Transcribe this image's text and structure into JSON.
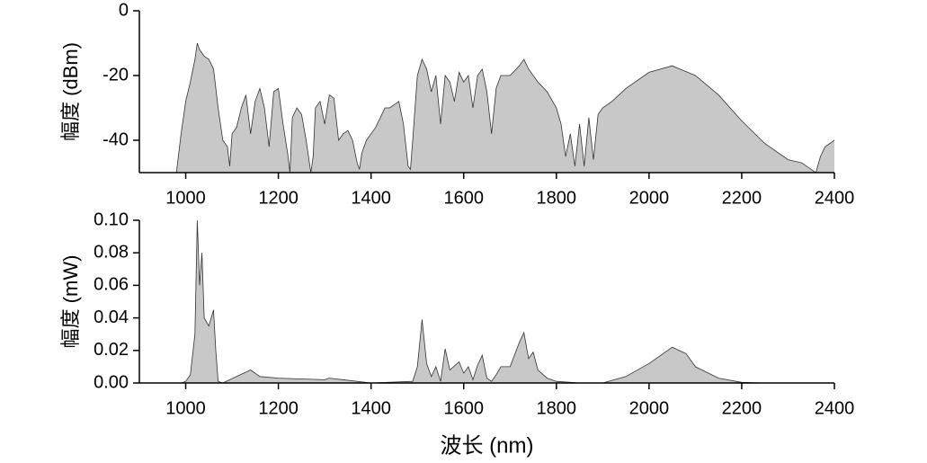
{
  "chart_data": [
    {
      "type": "area",
      "y_label": "幅度 (dBm)",
      "color": "#c8c8c8",
      "line_color": "#333333",
      "xlim": [
        900,
        2400
      ],
      "xticks": [
        1000,
        1200,
        1400,
        1600,
        1800,
        2000,
        2200,
        2400
      ],
      "ylim": [
        -50,
        0
      ],
      "yticks": [
        0,
        -20,
        -40
      ],
      "x": [
        980,
        990,
        1000,
        1010,
        1020,
        1025,
        1030,
        1040,
        1050,
        1060,
        1070,
        1080,
        1090,
        1095,
        1100,
        1110,
        1120,
        1130,
        1140,
        1150,
        1160,
        1170,
        1180,
        1190,
        1200,
        1210,
        1220,
        1225,
        1230,
        1240,
        1250,
        1260,
        1270,
        1275,
        1280,
        1290,
        1300,
        1310,
        1320,
        1330,
        1340,
        1350,
        1360,
        1370,
        1375,
        1380,
        1390,
        1400,
        1410,
        1420,
        1430,
        1440,
        1450,
        1460,
        1470,
        1480,
        1485,
        1490,
        1500,
        1510,
        1520,
        1530,
        1540,
        1550,
        1560,
        1570,
        1580,
        1590,
        1600,
        1610,
        1620,
        1630,
        1640,
        1650,
        1660,
        1670,
        1680,
        1700,
        1720,
        1730,
        1740,
        1760,
        1780,
        1800,
        1810,
        1820,
        1830,
        1840,
        1850,
        1860,
        1870,
        1880,
        1890,
        1900,
        1920,
        1950,
        2000,
        2050,
        2100,
        2150,
        2200,
        2250,
        2300,
        2330,
        2350,
        2360,
        2370,
        2380,
        2400
      ],
      "values": [
        -50,
        -38,
        -28,
        -22,
        -15,
        -10,
        -12,
        -14,
        -15,
        -18,
        -30,
        -40,
        -42,
        -48,
        -38,
        -36,
        -30,
        -26,
        -38,
        -28,
        -24,
        -30,
        -42,
        -25,
        -24,
        -35,
        -44,
        -50,
        -33,
        -30,
        -32,
        -40,
        -50,
        -45,
        -30,
        -28,
        -35,
        -26,
        -27,
        -40,
        -38,
        -37,
        -40,
        -47,
        -49,
        -44,
        -40,
        -38,
        -36,
        -33,
        -30,
        -30,
        -29,
        -28,
        -35,
        -48,
        -49,
        -40,
        -20,
        -15,
        -18,
        -25,
        -20,
        -35,
        -20,
        -22,
        -28,
        -19,
        -22,
        -20,
        -30,
        -20,
        -18,
        -25,
        -38,
        -24,
        -20,
        -20,
        -17,
        -15,
        -18,
        -22,
        -25,
        -30,
        -35,
        -45,
        -38,
        -48,
        -35,
        -48,
        -33,
        -46,
        -32,
        -30,
        -28,
        -24,
        -19,
        -17,
        -20,
        -26,
        -34,
        -41,
        -46,
        -47,
        -49,
        -50,
        -45,
        -42,
        -40
      ]
    },
    {
      "type": "area",
      "y_label": "幅度 (mW)",
      "x_label": "波长 (nm)",
      "color": "#c8c8c8",
      "line_color": "#333333",
      "xlim": [
        900,
        2400
      ],
      "xticks": [
        1000,
        1200,
        1400,
        1600,
        1800,
        2000,
        2200,
        2400
      ],
      "ylim": [
        0,
        0.1
      ],
      "yticks": [
        {
          "value": 0,
          "label": "0.00"
        },
        {
          "value": 0.02,
          "label": "0.02"
        },
        {
          "value": 0.04,
          "label": "0.04"
        },
        {
          "value": 0.06,
          "label": "0.06"
        },
        {
          "value": 0.08,
          "label": "0.08"
        },
        {
          "value": 0.1,
          "label": "0.10"
        }
      ],
      "x": [
        990,
        1000,
        1010,
        1020,
        1025,
        1030,
        1035,
        1040,
        1050,
        1060,
        1065,
        1070,
        1080,
        1140,
        1160,
        1200,
        1300,
        1310,
        1400,
        1490,
        1500,
        1510,
        1520,
        1530,
        1540,
        1550,
        1560,
        1570,
        1590,
        1600,
        1610,
        1620,
        1630,
        1640,
        1650,
        1660,
        1670,
        1680,
        1700,
        1720,
        1730,
        1740,
        1750,
        1760,
        1780,
        1800,
        1850,
        1900,
        1950,
        2000,
        2050,
        2080,
        2100,
        2150,
        2200,
        2250,
        2400
      ],
      "values": [
        0,
        0.001,
        0.005,
        0.03,
        0.1,
        0.06,
        0.08,
        0.04,
        0.035,
        0.045,
        0.02,
        0.001,
        0,
        0.008,
        0.004,
        0.003,
        0.002,
        0.003,
        0,
        0.001,
        0.01,
        0.039,
        0.012,
        0.004,
        0.01,
        0.001,
        0.021,
        0.008,
        0.013,
        0.006,
        0.01,
        0.002,
        0.011,
        0.017,
        0.003,
        0.001,
        0.005,
        0.01,
        0.01,
        0.025,
        0.031,
        0.015,
        0.019,
        0.008,
        0.003,
        0.001,
        0,
        0,
        0.004,
        0.012,
        0.022,
        0.018,
        0.01,
        0.003,
        0.0004,
        0,
        0
      ]
    }
  ]
}
